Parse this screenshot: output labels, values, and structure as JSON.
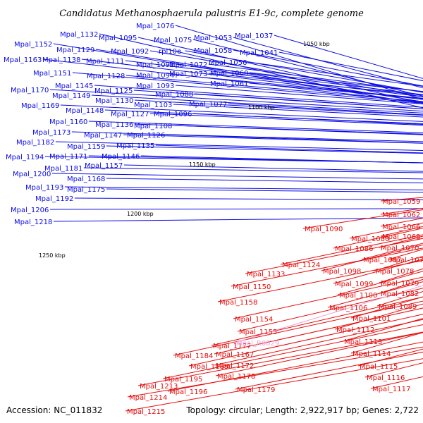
{
  "title": "Candidatus Methanosphaerula palustris E1-9c, complete genome",
  "footer": {
    "accession": "Accession: NC_011832",
    "topology": "Topology: circular; Length: 2,922,917 bp; Genes: 2,722"
  },
  "colors": {
    "forward": "#0a0ae6",
    "reverse": "#e60a0a",
    "rna": "#f0a0d2",
    "backbone": "#777777"
  },
  "position_ticks": [
    "1050 kbp",
    "1100 kbp",
    "1150 kbp",
    "1200 kbp",
    "1250 kbp"
  ],
  "forward_genes": [
    "Mpal_1076",
    "Mpal_1132",
    "Mpal_1095",
    "Mpal_1075",
    "Mpal_1053",
    "Mpal_1037",
    "Mpal_1152",
    "Mpal_1129",
    "Mpal_1092",
    "rpl10e",
    "Mpal_1058",
    "Mpal_1041",
    "Mpal_1163",
    "Mpal_1138",
    "Mpal_1111",
    "Mpal_1091",
    "Mpal_1072",
    "Mpal_1056",
    "Mpal_1151",
    "Mpal_1128",
    "Mpal_1094",
    "Mpal_1073",
    "Mpal_1060",
    "Mpal_1145",
    "Mpal_1093",
    "Mpal_1061",
    "Mpal_1170",
    "Mpal_1149",
    "Mpal_1125",
    "Mpal_1088",
    "Mpal_1130",
    "Mpal_1103",
    "Mpal_1077",
    "Mpal_1169",
    "Mpal_1148",
    "Mpal_1127",
    "Mpal_1096",
    "Mpal_1160",
    "Mpal_1136",
    "Mpal_1108",
    "Mpal_1173",
    "Mpal_1147",
    "Mpal_1126",
    "Mpal_1182",
    "Mpal_1159",
    "Mpal_1135",
    "Mpal_1194",
    "Mpal_1171",
    "Mpal_1146",
    "Mpal_1181",
    "Mpal_1157",
    "Mpal_1200",
    "Mpal_1168",
    "Mpal_1193",
    "Mpal_1175",
    "Mpal_1192",
    "Mpal_1206",
    "Mpal_1218"
  ],
  "reverse_genes": [
    "Mpal_1059",
    "Mpal_1062",
    "Mpal_1066",
    "Mpal_1090",
    "Mpal_1068",
    "Mpal_1080",
    "Mpal_1070",
    "Mpal_1086",
    "Mpal_1071",
    "Mpal_1087",
    "Mpal_1078",
    "Mpal_1098",
    "Mpal_1079",
    "Mpal_1124",
    "Mpal_1099",
    "Mpal_1082",
    "Mpal_1133",
    "Mpal_1100",
    "Mpal_1089",
    "Mpal_1150",
    "Mpal_1106",
    "Mpal_1101",
    "Mpal_1158",
    "Mpal_1112",
    "Mpal_1154",
    "Mpal_1155",
    "Mpal_1113",
    "Mpal_1177",
    "Mpal_1114",
    "Mpal_1184",
    "Mpal_1167",
    "Mpal_1189",
    "Mpal_1172",
    "Mpal_1115",
    "Mpal_1195",
    "Mpal_1178",
    "Mpal_1116",
    "Mpal_1213",
    "Mpal_1196",
    "Mpal_1179",
    "Mpal_1117",
    "Mpal_1214",
    "Mpal_1215"
  ],
  "rna_genes": [
    "Mpal_R0029"
  ]
}
